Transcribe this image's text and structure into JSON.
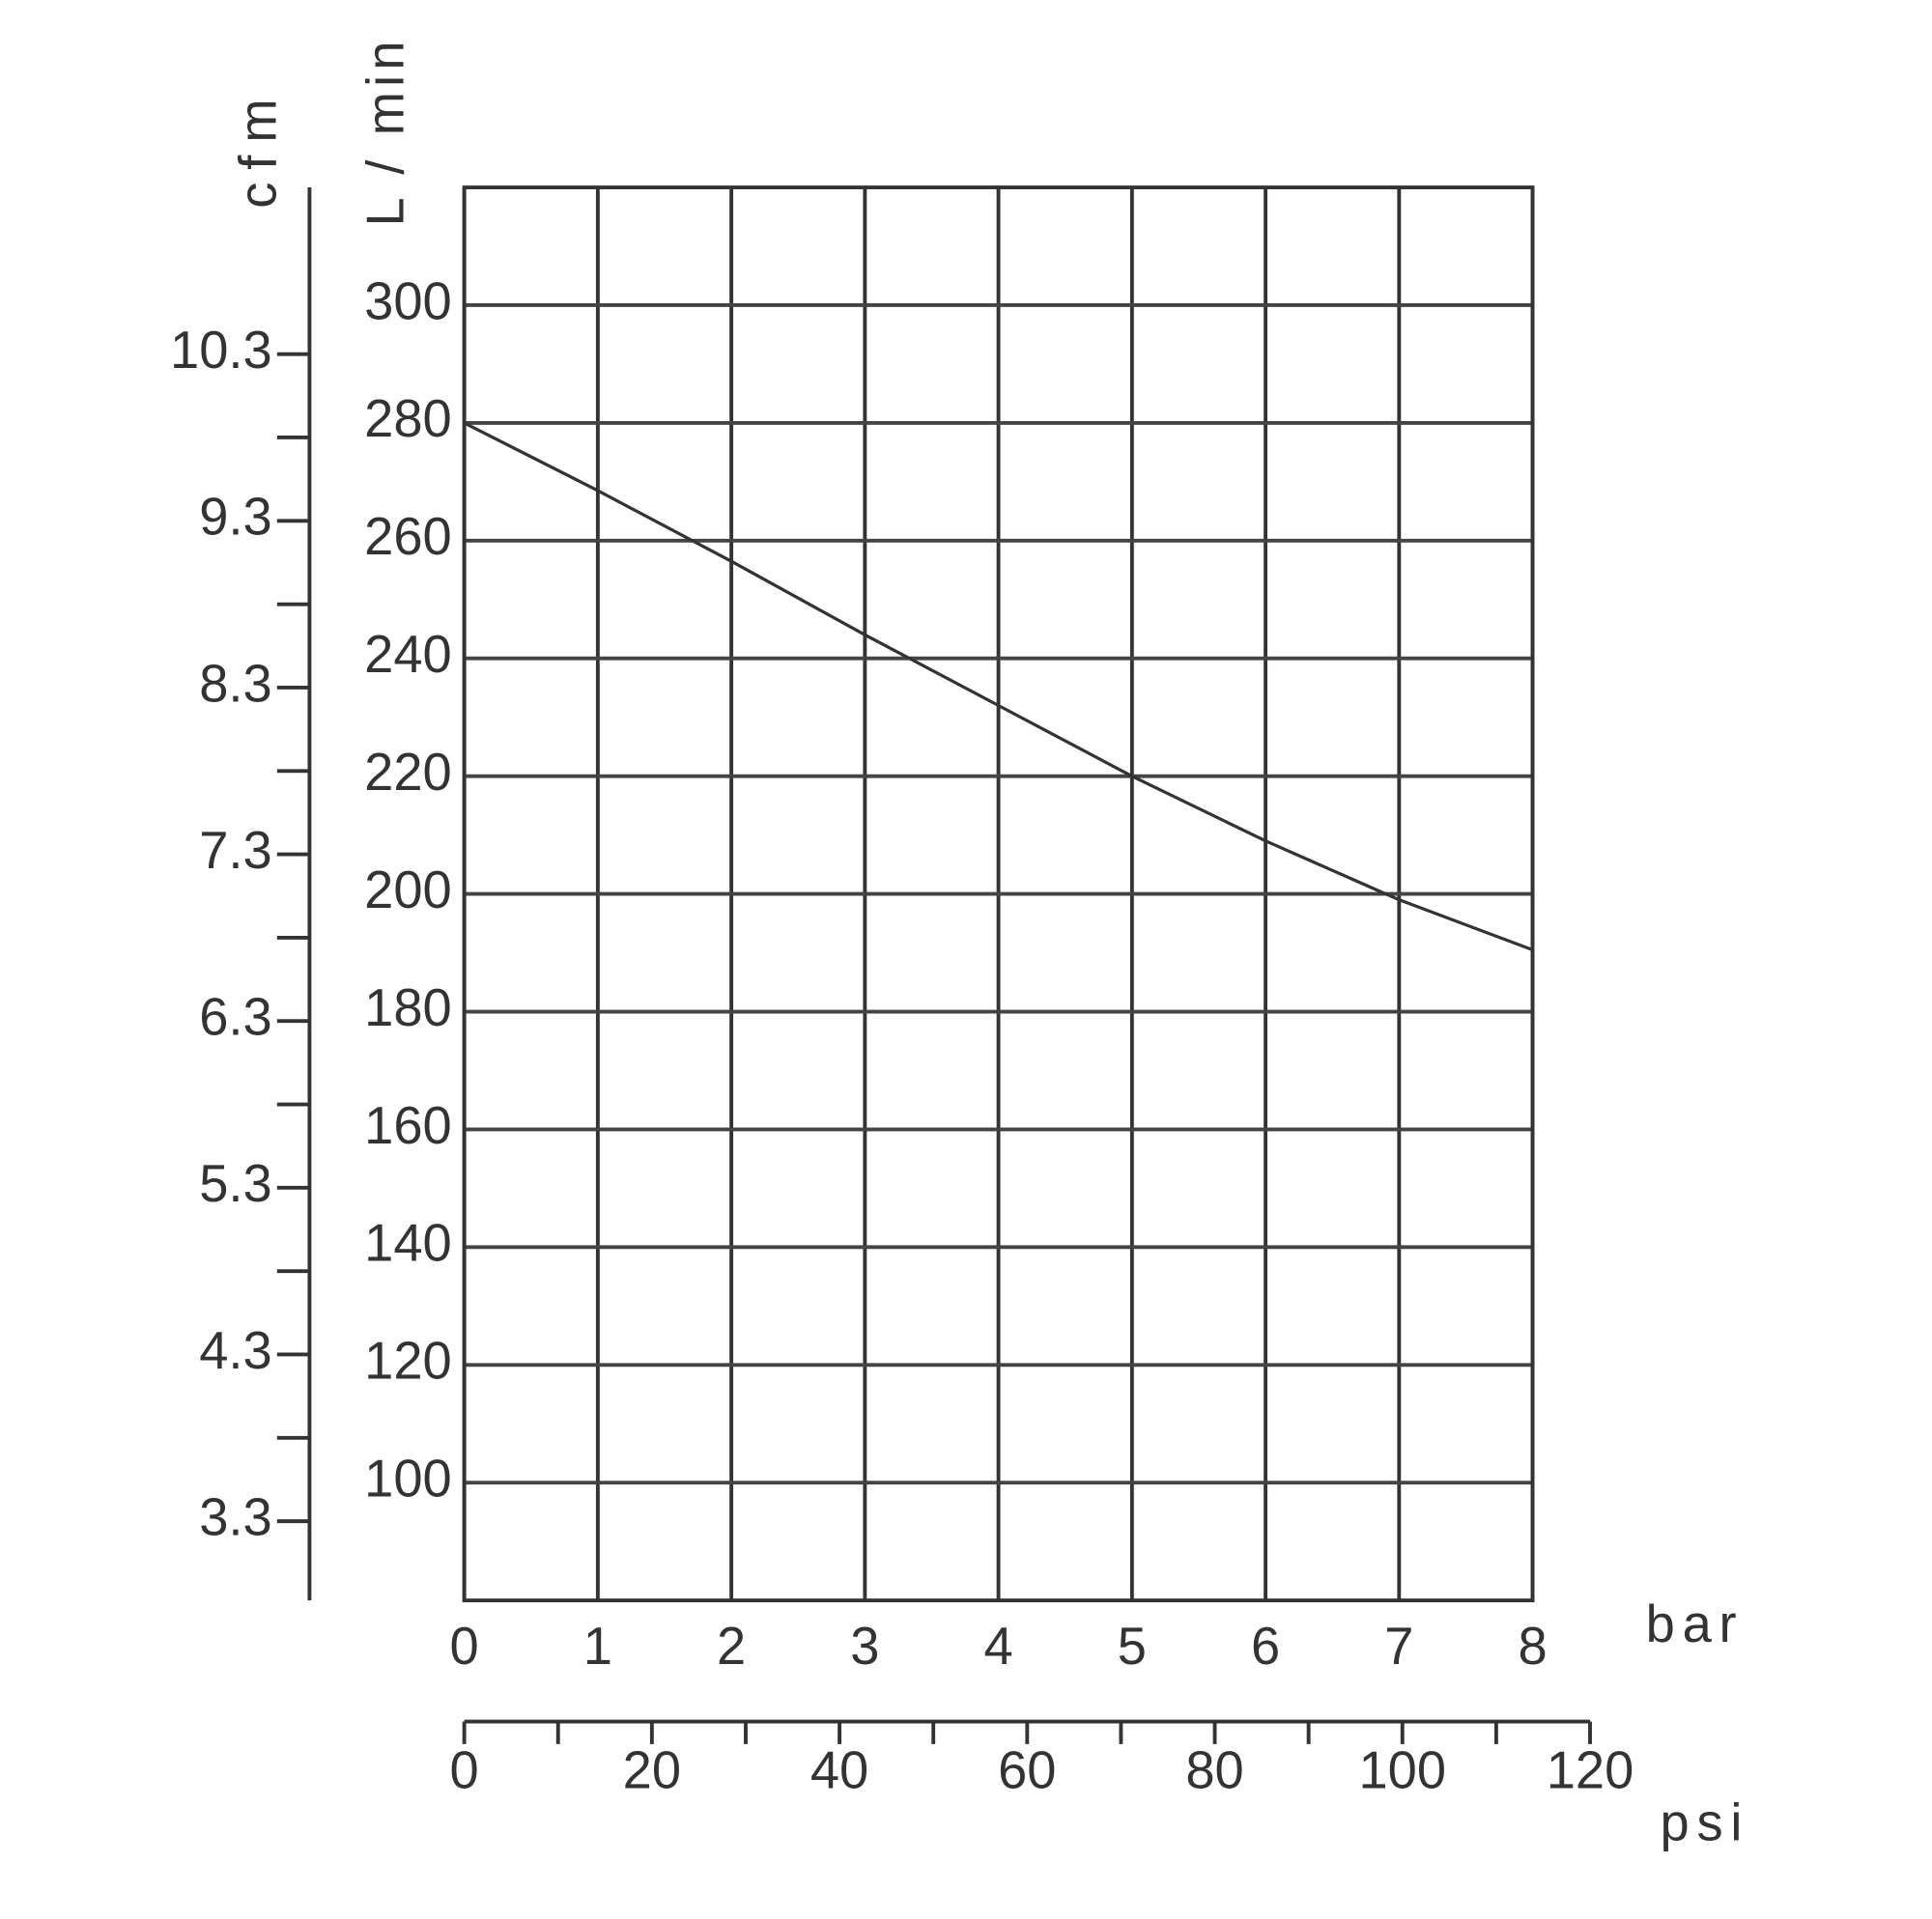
{
  "chart_data": {
    "type": "line",
    "x_label": "bar",
    "y_label": "L / min",
    "y2_label": "cfm",
    "x2_label": "psi",
    "x": [
      0,
      1,
      2,
      3,
      4,
      5,
      6,
      7,
      8
    ],
    "series": [
      {
        "color": "#333333",
        "values": [
          280,
          268.5,
          256.5,
          244,
          232,
          220,
          209,
          199,
          190.5
        ]
      }
    ],
    "xlim": [
      0,
      8
    ],
    "xticks": [
      0,
      1,
      2,
      3,
      4,
      5,
      6,
      7,
      8
    ],
    "ylim": [
      80,
      320
    ],
    "yticks": [
      100,
      120,
      140,
      160,
      180,
      200,
      220,
      240,
      260,
      280,
      300
    ],
    "y2lim": [
      2.825,
      11.3
    ],
    "y2ticks": [
      3.3,
      4.3,
      5.3,
      6.3,
      7.3,
      8.3,
      9.3,
      10.3
    ],
    "y2minor_ticks": [
      3.8,
      4.8,
      5.8,
      6.8,
      7.8,
      8.8,
      9.8
    ],
    "x2lim": [
      0,
      120
    ],
    "x2ticks": [
      0,
      20,
      40,
      60,
      80,
      100,
      120
    ],
    "x2minor_ticks": [
      10,
      30,
      50,
      70,
      90,
      110
    ],
    "grid": true
  }
}
